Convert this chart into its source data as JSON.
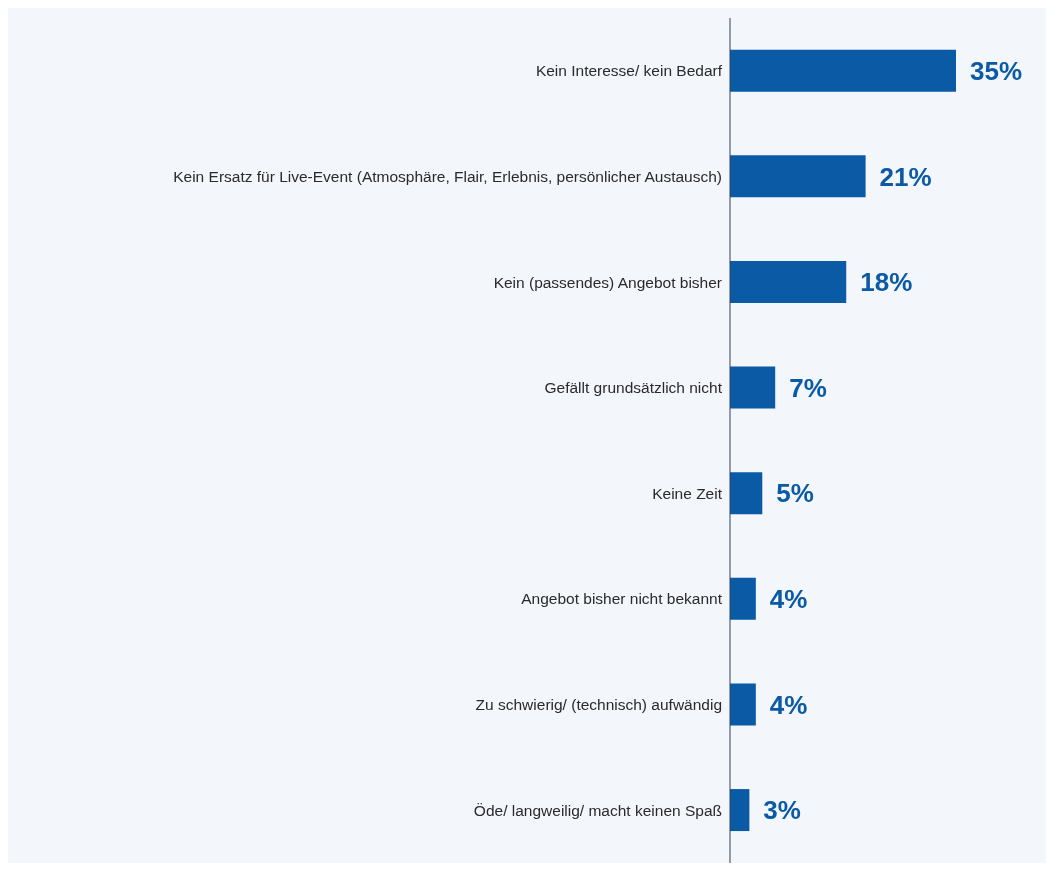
{
  "chart_data": {
    "type": "bar",
    "orientation": "horizontal",
    "categories": [
      "Kein Interesse/ kein Bedarf",
      "Kein Ersatz für Live-Event (Atmosphäre, Flair, Erlebnis, persönlicher Austausch)",
      "Kein (passendes) Angebot bisher",
      "Gefällt grundsätzlich nicht",
      "Keine Zeit",
      "Angebot bisher nicht bekannt",
      "Zu schwierig/ (technisch) aufwändig",
      "Öde/ langweilig/ macht keinen Spaß"
    ],
    "values": [
      35,
      21,
      18,
      7,
      5,
      4,
      4,
      3
    ],
    "value_labels": [
      "35%",
      "21%",
      "18%",
      "7%",
      "5%",
      "4%",
      "4%",
      "3%"
    ],
    "color": "#0b5aa6"
  }
}
